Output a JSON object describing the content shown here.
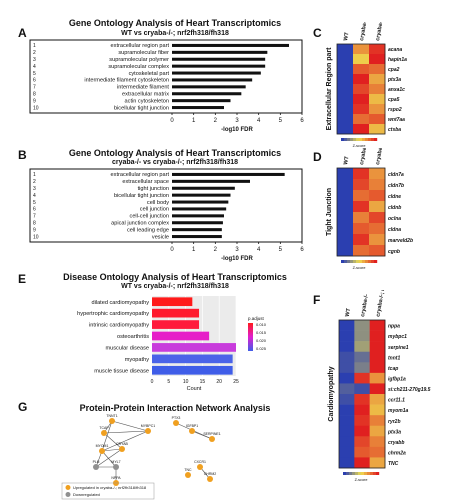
{
  "panels": {
    "A": {
      "letter": "A",
      "title": "Gene Ontology Analysis of Heart Transcriptomics",
      "subtitle": "WT vs cryaba-/-; nrf2fh318/fh318"
    },
    "B": {
      "letter": "B",
      "title": "Gene Ontology Analysis of Heart Transcriptomics",
      "subtitle": "cryaba-/- vs cryaba-/-; nrf2fh318/fh318"
    },
    "E": {
      "letter": "E",
      "title": "Disease Ontology Analysis of Heart Transcriptomics",
      "subtitle": "WT vs cryaba-/-; nrf2fh318/fh318"
    },
    "G": {
      "letter": "G",
      "title": "Protein-Protein Interaction Network Analysis"
    },
    "C": {
      "letter": "C",
      "ylabel": "Extracellular Region part"
    },
    "D": {
      "letter": "D",
      "ylabel": "Tight Junction"
    },
    "F": {
      "letter": "F",
      "ylabel": "Cardiomyopathy"
    }
  },
  "heatmap_columns": [
    "WT",
    "cryaba-/-",
    "cryaba-/-; nrf2fh318/fh318"
  ],
  "chart_data": [
    {
      "panel": "A",
      "type": "bar",
      "orientation": "horizontal",
      "categories": [
        "extracellular region part",
        "supramolecular fiber",
        "supramolecular polymer",
        "supramolecular complex",
        "cytoskeletal part",
        "intermediate filament cytoskeleton",
        "intermediate filament",
        "extracellular matrix",
        "actin cytoskeleton",
        "bicellular tight junction"
      ],
      "values": [
        5.4,
        4.4,
        4.3,
        4.3,
        4.1,
        3.7,
        3.4,
        3.2,
        2.7,
        2.4
      ],
      "xlabel": "-log10 FDR",
      "xlim": [
        0,
        6
      ],
      "xticks": [
        0,
        1,
        2,
        3,
        4,
        5,
        6
      ],
      "rank_labels": [
        "1",
        "2",
        "3",
        "4",
        "5",
        "6",
        "7",
        "8",
        "9",
        "10"
      ]
    },
    {
      "panel": "B",
      "type": "bar",
      "orientation": "horizontal",
      "categories": [
        "extracellular region part",
        "extracellular space",
        "tight junction",
        "bicellular tight junction",
        "cell body",
        "cell junction",
        "cell-cell junction",
        "apical junction complex",
        "cell leading edge",
        "vesicle"
      ],
      "values": [
        5.2,
        3.6,
        2.9,
        2.7,
        2.6,
        2.5,
        2.4,
        2.35,
        2.3,
        2.3
      ],
      "xlabel": "-log10 FDR",
      "xlim": [
        0,
        6
      ],
      "xticks": [
        0,
        1,
        2,
        3,
        4,
        5,
        6
      ],
      "rank_labels": [
        "1",
        "2",
        "3",
        "4",
        "5",
        "6",
        "7",
        "8",
        "9",
        "10"
      ]
    },
    {
      "panel": "E",
      "type": "bar",
      "orientation": "horizontal",
      "categories": [
        "dilated cardiomyopathy",
        "hypertrophic cardiomyopathy",
        "intrinsic cardiomyopathy",
        "osteoarthritis",
        "muscular disease",
        "myopathy",
        "muscle tissue disease"
      ],
      "values": [
        12,
        14,
        14,
        17,
        25,
        24,
        24
      ],
      "colors": [
        "#ff1a1a",
        "#ff1a2e",
        "#ff1a3c",
        "#e61ec8",
        "#c83cdc",
        "#4a63e8",
        "#3f5de8"
      ],
      "xlabel": "Count",
      "xlim": [
        0,
        25
      ],
      "xticks": [
        0,
        5,
        10,
        15,
        20,
        25
      ],
      "legend_title": "p.adjust",
      "legend_ticks": [
        "0.010",
        "0.015",
        "0.020",
        "0.025"
      ]
    },
    {
      "panel": "C",
      "type": "heatmap",
      "rows": [
        "acana",
        "hapin1a",
        "cpa2",
        "ptx3a",
        "anxa1c",
        "cpa5",
        "rspo2",
        "wnt7aa",
        "ctsba"
      ],
      "values": [
        [
          -1.0,
          0.4,
          0.9
        ],
        [
          -1.0,
          0.1,
          1.0
        ],
        [
          -1.0,
          0.7,
          0.6
        ],
        [
          -1.0,
          1.0,
          0.3
        ],
        [
          -1.0,
          0.8,
          0.5
        ],
        [
          -1.0,
          1.0,
          0.2
        ],
        [
          -1.0,
          0.9,
          0.4
        ],
        [
          -1.0,
          0.6,
          0.7
        ],
        [
          -1.0,
          1.0,
          0.2
        ]
      ],
      "color_scale": [
        "#2b3fb0",
        "#f0e050",
        "#e02020"
      ],
      "scale_label": "Z-score"
    },
    {
      "panel": "D",
      "type": "heatmap",
      "rows": [
        "cldn7a",
        "cldn7b",
        "cldne",
        "cldnb",
        "oclna",
        "cldna",
        "marveld2b",
        "cgnb"
      ],
      "values": [
        [
          -1.0,
          0.9,
          0.4
        ],
        [
          -1.0,
          0.8,
          0.5
        ],
        [
          -1.0,
          0.6,
          0.7
        ],
        [
          -1.0,
          0.9,
          0.3
        ],
        [
          -1.0,
          0.5,
          0.8
        ],
        [
          -1.0,
          0.7,
          0.6
        ],
        [
          -1.0,
          0.9,
          0.4
        ],
        [
          -1.0,
          0.6,
          0.7
        ]
      ],
      "color_scale": [
        "#2b3fb0",
        "#f0e050",
        "#e02020"
      ],
      "scale_label": "Z-score"
    },
    {
      "panel": "F",
      "type": "heatmap",
      "rows": [
        "nppa",
        "mybpc1",
        "serpine1",
        "tnnt1",
        "tcap",
        "igfbp1a",
        "si:ch211-270g19.5",
        "ccr11.1",
        "myom1a",
        "ryr2b",
        "ptx3a",
        "cryabb",
        "chrm2a",
        "TNC"
      ],
      "values": [
        [
          -1.0,
          -0.5,
          1.0
        ],
        [
          -1.0,
          -0.5,
          1.0
        ],
        [
          -1.0,
          -0.4,
          1.0
        ],
        [
          -0.9,
          -0.7,
          1.0
        ],
        [
          -0.9,
          -0.6,
          1.0
        ],
        [
          -1.0,
          0.9,
          0.4
        ],
        [
          -0.8,
          -0.9,
          1.0
        ],
        [
          -0.9,
          0.9,
          0.3
        ],
        [
          -1.0,
          1.0,
          0.2
        ],
        [
          -1.0,
          0.9,
          0.5
        ],
        [
          -1.0,
          1.0,
          0.3
        ],
        [
          -1.0,
          0.8,
          0.5
        ],
        [
          -1.0,
          0.7,
          0.6
        ],
        [
          -1.0,
          1.0,
          0.3
        ]
      ],
      "color_scale": [
        "#2b3fb0",
        "#f0e050",
        "#e02020"
      ],
      "scale_label": "Z-score"
    }
  ],
  "network": {
    "nodes": [
      {
        "label": "TNNT1",
        "type": "up"
      },
      {
        "label": "TCAP",
        "type": "up"
      },
      {
        "label": "MYBPC1",
        "type": "up"
      },
      {
        "label": "PTX3",
        "type": "up"
      },
      {
        "label": "IGFBP1",
        "type": "up"
      },
      {
        "label": "SERPINE1",
        "type": "up"
      },
      {
        "label": "CRYAB",
        "type": "up"
      },
      {
        "label": "MYOM1",
        "type": "up"
      },
      {
        "label": "PLN",
        "type": "down"
      },
      {
        "label": "MYL7",
        "type": "down"
      },
      {
        "label": "NPPA",
        "type": "up"
      },
      {
        "label": "CXCR1",
        "type": "up"
      },
      {
        "label": "CHRM2",
        "type": "up"
      },
      {
        "label": "TNC",
        "type": "up"
      }
    ],
    "edges": [
      [
        0,
        1
      ],
      [
        0,
        2
      ],
      [
        1,
        2
      ],
      [
        1,
        6
      ],
      [
        2,
        7
      ],
      [
        0,
        7
      ],
      [
        6,
        7
      ],
      [
        7,
        8
      ],
      [
        8,
        9
      ],
      [
        9,
        10
      ],
      [
        6,
        8
      ],
      [
        7,
        9
      ],
      [
        4,
        5
      ],
      [
        3,
        5
      ],
      [
        11,
        12
      ]
    ],
    "legend": [
      {
        "label": "Upregulated in cryaba-/-; nrf2fh318/fh318",
        "color": "#f0a020"
      },
      {
        "label": "Downregulated",
        "color": "#909090"
      }
    ]
  }
}
